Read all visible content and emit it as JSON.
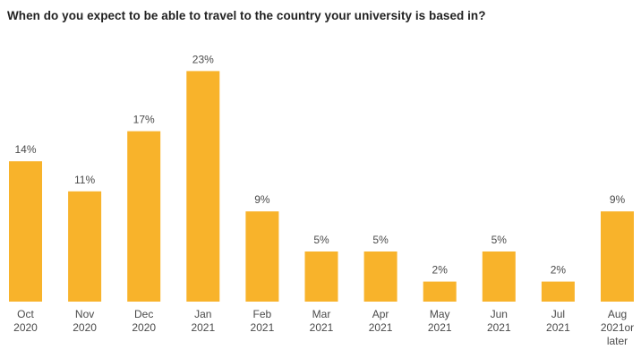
{
  "chart_data": {
    "type": "bar",
    "title": "When do you expect to be able to travel to the country your university is based in?",
    "bar_color": "#F8B32B",
    "value_suffix": "%",
    "categories": [
      [
        "Oct",
        "2020"
      ],
      [
        "Nov",
        "2020"
      ],
      [
        "Dec",
        "2020"
      ],
      [
        "Jan",
        "2021"
      ],
      [
        "Feb",
        "2021"
      ],
      [
        "Mar",
        "2021"
      ],
      [
        "Apr",
        "2021"
      ],
      [
        "May",
        "2021"
      ],
      [
        "Jun",
        "2021"
      ],
      [
        "Jul",
        "2021"
      ],
      [
        "Aug",
        "2021or",
        "later"
      ]
    ],
    "values": [
      14,
      11,
      17,
      23,
      9,
      5,
      5,
      2,
      5,
      2,
      9
    ]
  }
}
